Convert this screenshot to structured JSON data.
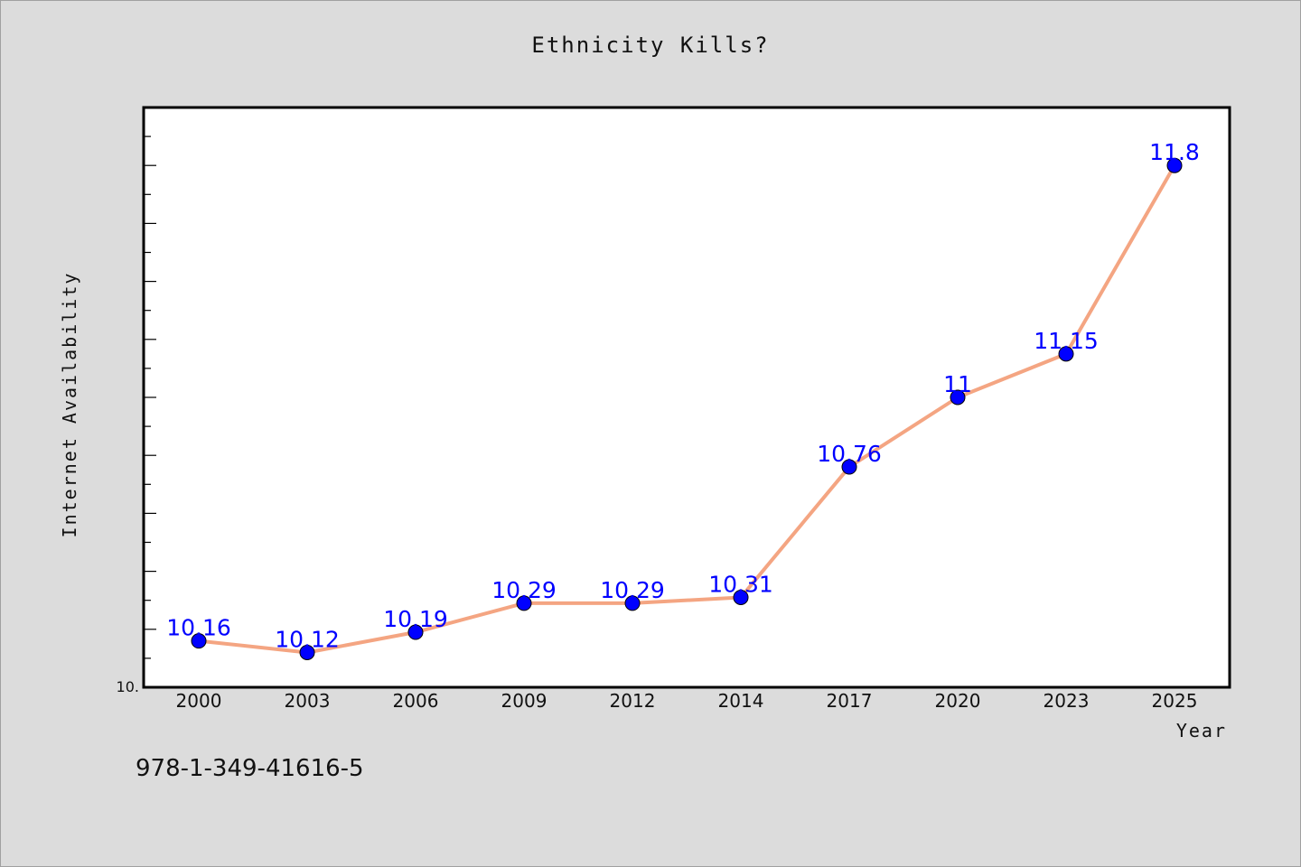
{
  "footer_text": "978-1-349-41616-5",
  "colors": {
    "background": "#dcdcdc",
    "plot_background": "#ffffff",
    "line": "#f4a582",
    "marker": "#0000ff",
    "label": "#0000ff"
  },
  "chart_data": {
    "type": "line",
    "title": "Ethnicity Kills?",
    "xlabel": "Year",
    "ylabel": "Internet Availability",
    "categories": [
      "2000",
      "2003",
      "2006",
      "2009",
      "2012",
      "2014",
      "2017",
      "2020",
      "2023",
      "2025"
    ],
    "series": [
      {
        "values": [
          10.16,
          10.12,
          10.19,
          10.29,
          10.29,
          10.31,
          10.76,
          11,
          11.15,
          11.8
        ],
        "labels": [
          "10.16",
          "10.12",
          "10.19",
          "10.29",
          "10.29",
          "10.31",
          "10.76",
          "11",
          "11.15",
          "11.8"
        ]
      }
    ],
    "y_tick_label": "10.",
    "ylim": [
      10.0,
      12.0
    ],
    "grid": false,
    "legend": "none"
  }
}
